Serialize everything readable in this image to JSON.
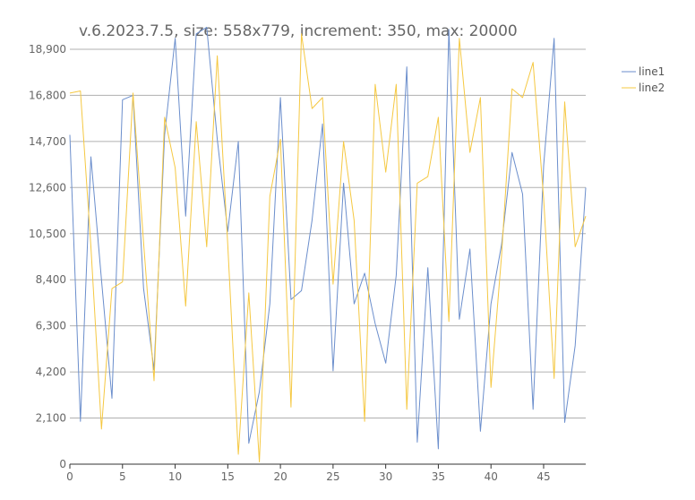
{
  "chart_data": {
    "type": "line",
    "title": "v.6.2023.7.5, size: 558x779, increment: 350, max: 20000",
    "xlabel": "",
    "ylabel": "",
    "xlim": [
      0,
      49
    ],
    "ylim": [
      0,
      20000
    ],
    "x_ticks": [
      0,
      5,
      10,
      15,
      20,
      25,
      30,
      35,
      40,
      45
    ],
    "y_ticks": [
      0,
      2100,
      4200,
      6300,
      8400,
      10500,
      12600,
      14700,
      16800,
      18900
    ],
    "y_tick_labels": [
      "0",
      "2,100",
      "4,200",
      "6,300",
      "8,400",
      "10,500",
      "12,600",
      "14,700",
      "16,800",
      "18,900"
    ],
    "grid": "horizontal",
    "legend": "top-right",
    "x": [
      0,
      1,
      2,
      3,
      4,
      5,
      6,
      7,
      8,
      9,
      10,
      11,
      12,
      13,
      14,
      15,
      16,
      17,
      18,
      19,
      20,
      21,
      22,
      23,
      24,
      25,
      26,
      27,
      28,
      29,
      30,
      31,
      32,
      33,
      34,
      35,
      36,
      37,
      38,
      39,
      40,
      41,
      42,
      43,
      44,
      45,
      46,
      47,
      48,
      49
    ],
    "series": [
      {
        "name": "line1",
        "color": "#6b8ecc",
        "values": [
          15000,
          1950,
          14000,
          8400,
          3000,
          16600,
          16800,
          8000,
          4300,
          15000,
          19400,
          11300,
          19600,
          19900,
          14800,
          10600,
          14700,
          950,
          3300,
          7300,
          16700,
          7500,
          7900,
          11100,
          15500,
          4250,
          12800,
          7300,
          8700,
          6400,
          4600,
          8600,
          18100,
          1000,
          8950,
          700,
          19800,
          6600,
          9800,
          1500,
          7300,
          10000,
          14200,
          12300,
          2500,
          13600,
          19400,
          1900,
          5400,
          12600
        ]
      },
      {
        "name": "line2",
        "color": "#f5c842",
        "values": [
          16900,
          17000,
          9900,
          1600,
          8000,
          8300,
          16900,
          10100,
          3800,
          15800,
          13500,
          7200,
          15600,
          9900,
          18600,
          10000,
          450,
          7800,
          100,
          12200,
          14800,
          2600,
          19600,
          16200,
          16700,
          8200,
          14700,
          11100,
          1950,
          17300,
          13300,
          17300,
          2500,
          12800,
          13100,
          15800,
          6500,
          19400,
          14200,
          16700,
          3500,
          9500,
          17100,
          16700,
          18300,
          12100,
          3900,
          16500,
          9900,
          11300
        ]
      }
    ]
  }
}
